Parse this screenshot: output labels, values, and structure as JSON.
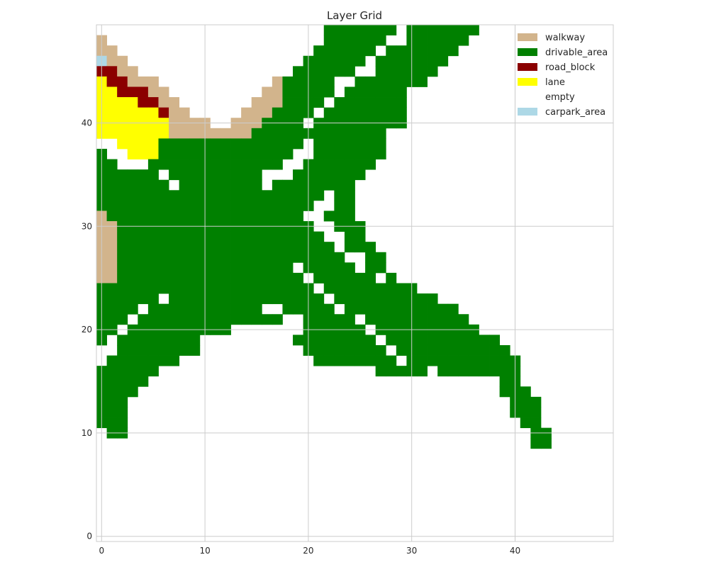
{
  "chart_data": {
    "type": "heatmap",
    "title": "Layer Grid",
    "xlabel": "",
    "ylabel": "",
    "xlim": [
      -0.5,
      49.5
    ],
    "ylim": [
      -0.5,
      49.5
    ],
    "x_ticks": [
      0,
      10,
      20,
      30,
      40
    ],
    "y_ticks": [
      0,
      10,
      20,
      30,
      40
    ],
    "grid": true,
    "legend_position": "top-right",
    "categories": [
      {
        "id": "walkway",
        "color": "#d2b48c"
      },
      {
        "id": "drivable_area",
        "color": "#008000"
      },
      {
        "id": "road_block",
        "color": "#8b0000"
      },
      {
        "id": "lane",
        "color": "#ffff00"
      },
      {
        "id": "empty",
        "color": "#ffffff"
      },
      {
        "id": "carpark_area",
        "color": "#add8e6"
      }
    ],
    "cell_codes": {
      "W": "walkway",
      "G": "drivable_area",
      "R": "road_block",
      "L": "lane",
      ".": "empty",
      "C": "carpark_area"
    },
    "rows_top_to_bottom": [
      "......................GGGGGGG.GGGGGGG.............",
      "W.....................GGGGGG..GGGGGG..............",
      "WW...................GGGGGG.GGGGGGG...............",
      "CWW.................GGGGGG.GGGGGGG................",
      "RRWW...............GGGGGG..GGGGGG.................",
      "LRRWWW...........WGGGGG..GGGGGGG..................",
      "LLRRRWW.........WWGGGGG.GGGGGG....................",
      "LLLLRRWW.......WWWGGGG.GGGGGGG....................",
      "LLLLLLRWW.....WWWGGGG.GGGGGGGG....................",
      "LLLLLLLWWWW..WWWGGGG.GGGGGGGGG....................",
      "LLLLLLLWWWWWWWWGGGGGGGGGGGGG......................",
      "..LLLLGGGGGGGGGGGGGG.GGGGGGG......................",
      "G..LLLGGGGGGGGGGGGG..GGGGGGG......................",
      "GG...GGGGGGGGGGGGG..GGGGGGG.......................",
      "GGGGGG.GGGGGGGGG...GGGGGGG........................",
      "GGGGGGG.GGGGGGGG.GGGGGGGG.........................",
      "GGGGGGGGGGGGGGGGGGGGGG.GG.........................",
      "GGGGGGGGGGGGGGGGGGGGG..GG.........................",
      "WGGGGGGGGGGGGGGGGGGG..GGG.........................",
      "WWGGGGGGGGGGGGGGGGGGG..GGG........................",
      "WWGGGGGGGGGGGGGGGGGGGG..GG........................",
      "WWGGGGGGGGGGGGGGGGGGGGG.GGG.......................",
      "WWGGGGGGGGGGGGGGGGGGGGGG..GG......................",
      "WWGGGGGGGGGGGGGGGGG.GGGGG.GG......................",
      "WWGGGGGGGGGGGGGGGGGG.GGGGGG.G.....................",
      "GGGGGGGGGGGGGGGGGGGGG.GGGGGGGGG...................",
      "GGGGGG.GGGGGGGGGGGGGGG.GGGGGGGGGG.................",
      "GGGG.GGGGGGGGGGG..GGGGG.GGGGGGGGGGG...............",
      "GGG.GGGGGGGGGGGGGG..GGGGG.GGGGGGGGGG..............",
      "GG.GGGGGGGGGG.......GGGGGG.GGGGGGGGGG.............",
      "G.GGGGGGGG.........GGGGGGGG.GGGGGGGGGGG...........",
      "..GGGGGGGG..........GGGGGGGG.GGGGGGGGGGG..........",
      ".GGGGGGG.............GGGGGGGG.GGGGGGGGGGG.........",
      "GGGGGG.....................GGGGG.GGGGGGGG.........",
      "GGGGG..................................GG.........",
      "GGGG...................................GGG........",
      "GGG.....................................GGG.......",
      "GGG.....................................GGG.......",
      "GGG......................................GG.......",
      ".GG.......................................GG......",
      "..........................................GG......",
      "..................................................",
      "..................................................",
      "..................................................",
      "..................................................",
      "..................................................",
      "..................................................",
      "..................................................",
      "..................................................",
      ".................................................."
    ]
  }
}
